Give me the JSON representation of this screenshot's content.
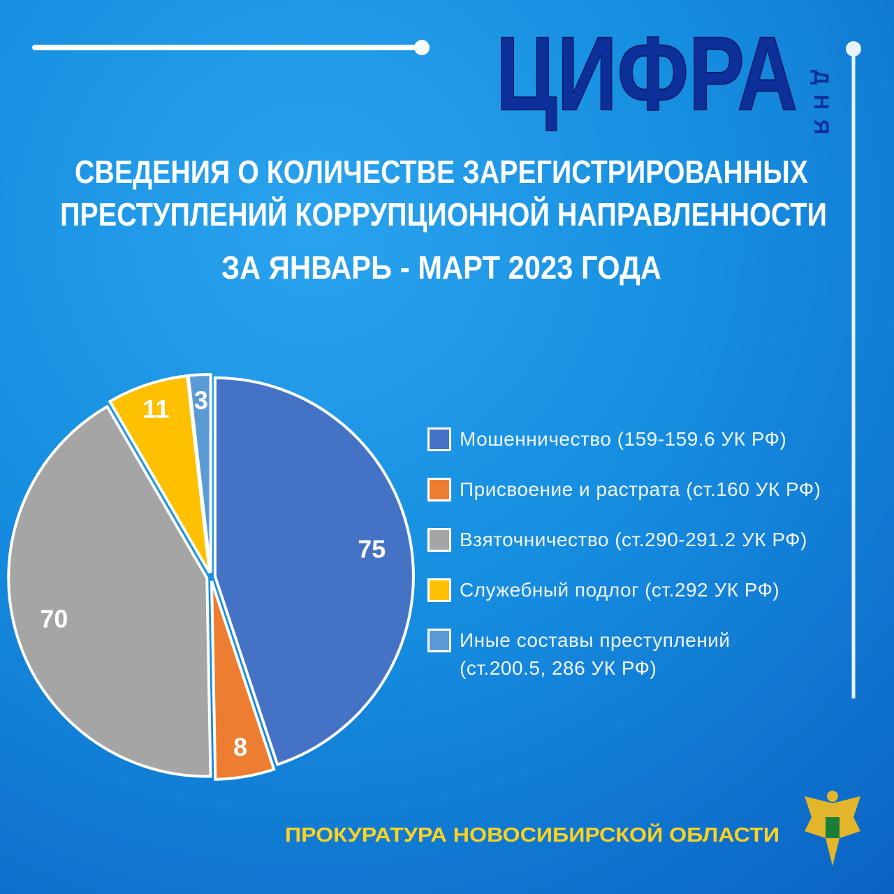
{
  "header": {
    "brand": "ЦИФРА",
    "brand_side": "ДНЯ"
  },
  "chart_data": {
    "type": "pie",
    "title": [
      "СВЕДЕНИЯ О КОЛИЧЕСТВЕ ЗАРЕГИСТРИРОВАННЫХ",
      "ПРЕСТУПЛЕНИЙ КОРРУПЦИОННОЙ НАПРАВЛЕННОСТИ"
    ],
    "subtitle": "ЗА ЯНВАРЬ - МАРТ 2023 ГОДА",
    "categories": [
      "Мошенничество (159-159.6 УК РФ)",
      "Присвоение и растрата (ст.160 УК РФ)",
      "Взяточничество (ст.290-291.2 УК РФ)",
      "Служебный подлог (ст.292 УК РФ)",
      "Иные составы преступлений (ст.200.5, 286 УК РФ)"
    ],
    "values": [
      75,
      8,
      70,
      11,
      3
    ],
    "colors": [
      "#4472c4",
      "#ed7d31",
      "#a5a5a5",
      "#ffc000",
      "#5b9bd5"
    ]
  },
  "footer": "ПРОКУРАТУРА НОВОСИБИРСКОЙ ОБЛАСТИ"
}
